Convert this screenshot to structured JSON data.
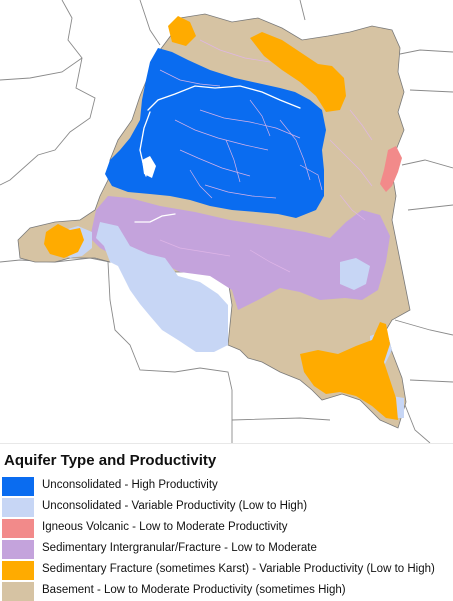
{
  "legend": {
    "title": "Aquifer Type and Productivity",
    "items": [
      {
        "label": "Unconsolidated - High Productivity",
        "color": "#0a6cf0"
      },
      {
        "label": "Unconsolidated - Variable Productivity (Low to High)",
        "color": "#c7d6f5"
      },
      {
        "label": "Igneous Volcanic - Low to Moderate Productivity",
        "color": "#f28a8a"
      },
      {
        "label": "Sedimentary Intergranular/Fracture - Low to Moderate",
        "color": "#c4a3dc"
      },
      {
        "label": "Sedimentary Fracture (sometimes Karst) - Variable Productivity (Low to High)",
        "color": "#ffab00"
      },
      {
        "label": "Basement - Low to Moderate Productivity (sometimes High)",
        "color": "#d6c3a3"
      }
    ]
  },
  "map": {
    "colors": {
      "background": "#ffffff",
      "borders": "#888888",
      "rivers": "#ffffff",
      "tributaries": "#e0b6e8",
      "lakes": "#c7d6f5"
    }
  }
}
